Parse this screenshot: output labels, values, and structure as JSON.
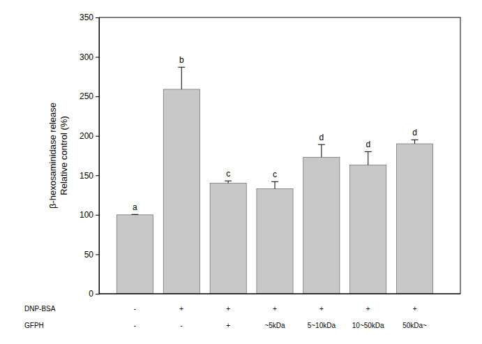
{
  "chart_data": {
    "type": "bar",
    "ylabel": [
      "β-hexosaminidase release",
      "Relative control (%)"
    ],
    "categories": [
      null,
      null,
      null,
      null,
      null,
      null,
      null
    ],
    "values": [
      100,
      259,
      140,
      133,
      173,
      163,
      190
    ],
    "errors": [
      0.5,
      28,
      3,
      9,
      16,
      17,
      5
    ],
    "significance_letters": [
      "a",
      "b",
      "c",
      "c",
      "d",
      "d",
      "d"
    ],
    "treatments": [
      {
        "name": "DNP-BSA",
        "labels": [
          "-",
          "+",
          "+",
          "+",
          "+",
          "+",
          "+"
        ]
      },
      {
        "name": "GFPH",
        "labels": [
          "-",
          "-",
          "+",
          "~5kDa",
          "5~10kDa",
          "10~50kDa",
          "50kDa~"
        ]
      }
    ],
    "color": "#c8c8c8",
    "ylim": [
      0,
      350
    ],
    "yticks": [
      0,
      50,
      100,
      150,
      200,
      250,
      300,
      350
    ],
    "grid": false
  }
}
